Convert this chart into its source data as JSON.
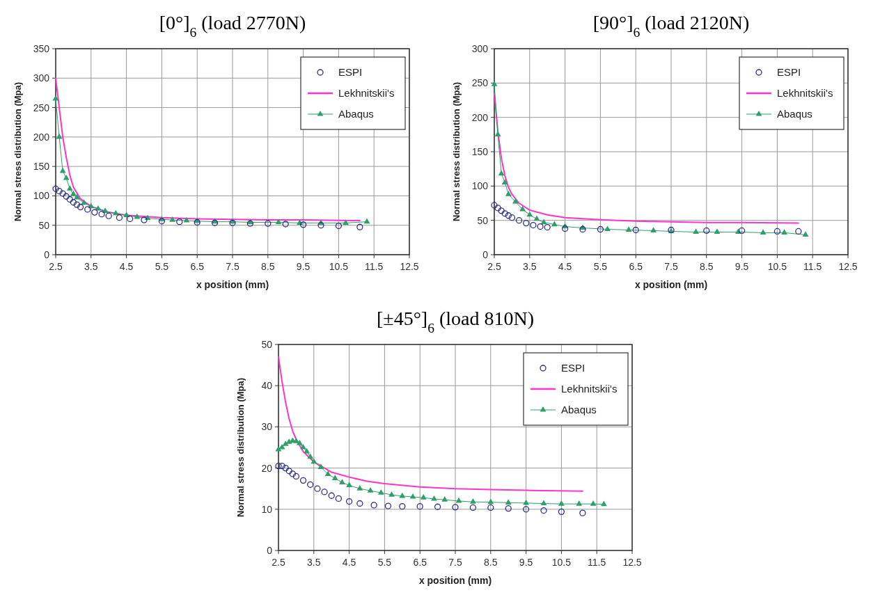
{
  "chart_data": [
    {
      "type": "line",
      "title": "[0°]$_{6}$ (load 2770N)",
      "xlabel": "x position (mm)",
      "ylabel": "Normal stress distribution (Mpa)",
      "xlim": [
        2.5,
        12.5
      ],
      "xticks": [
        2.5,
        3.5,
        4.5,
        5.5,
        6.5,
        7.5,
        8.5,
        9.5,
        10.5,
        11.5,
        12.5
      ],
      "ylim": [
        0,
        350
      ],
      "yticks": [
        0,
        50,
        100,
        150,
        200,
        250,
        300,
        350
      ],
      "grid": true,
      "legend": "top right",
      "series": [
        {
          "name": "ESPI",
          "type": "scatter",
          "marker": "circle",
          "color": "#2e2e8c",
          "x": [
            2.5,
            2.6,
            2.7,
            2.8,
            2.9,
            3.0,
            3.1,
            3.2,
            3.4,
            3.6,
            3.8,
            4.0,
            4.3,
            4.6,
            5.0,
            5.5,
            6.0,
            6.5,
            7.0,
            7.5,
            8.0,
            8.5,
            9.0,
            9.5,
            10.0,
            10.5,
            11.1
          ],
          "values": [
            112,
            108,
            104,
            99,
            94,
            89,
            85,
            81,
            77,
            72,
            69,
            66,
            63,
            61,
            59,
            57,
            56,
            55,
            54,
            54,
            53,
            53,
            52,
            51,
            50,
            49,
            47
          ]
        },
        {
          "name": "Lekhnitskii's",
          "marker": "none",
          "color": "#ff33cc",
          "x": [
            2.5,
            2.6,
            2.7,
            2.8,
            2.9,
            3.0,
            3.2,
            3.5,
            4.0,
            4.5,
            5.5,
            6.5,
            7.5,
            8.5,
            9.5,
            11.1
          ],
          "values": [
            300,
            250,
            200,
            165,
            135,
            115,
            95,
            82,
            72,
            67,
            63,
            61,
            60,
            59,
            59,
            58
          ]
        },
        {
          "name": "Abaqus",
          "marker": "triangle",
          "color": "#2e9e6a",
          "x": [
            2.5,
            2.6,
            2.7,
            2.8,
            2.9,
            3.0,
            3.1,
            3.3,
            3.5,
            3.7,
            3.9,
            4.2,
            4.5,
            4.8,
            5.1,
            5.5,
            5.8,
            6.2,
            6.5,
            7.0,
            7.5,
            8.0,
            8.8,
            9.4,
            10.0,
            10.7,
            11.3
          ],
          "values": [
            265,
            200,
            142,
            130,
            112,
            103,
            97,
            88,
            82,
            78,
            74,
            70,
            67,
            64,
            62,
            60,
            59,
            58,
            57,
            56,
            56,
            55,
            55,
            54,
            54,
            54,
            56
          ]
        }
      ]
    },
    {
      "type": "line",
      "title": "[90°]$_{6}$ (load 2120N)",
      "xlabel": "x position (mm)",
      "ylabel": "Normal stress distribution (Mpa)",
      "xlim": [
        2.5,
        12.5
      ],
      "xticks": [
        2.5,
        3.5,
        4.5,
        5.5,
        6.5,
        7.5,
        8.5,
        9.5,
        10.5,
        11.5,
        12.5
      ],
      "ylim": [
        0,
        300
      ],
      "yticks": [
        0,
        50,
        100,
        150,
        200,
        250,
        300
      ],
      "grid": true,
      "legend": "top right",
      "series": [
        {
          "name": "ESPI",
          "type": "scatter",
          "marker": "circle",
          "color": "#2e2e8c",
          "x": [
            2.5,
            2.6,
            2.7,
            2.8,
            2.9,
            3.0,
            3.2,
            3.4,
            3.6,
            3.8,
            4.0,
            4.5,
            5.0,
            5.5,
            6.5,
            7.5,
            8.5,
            9.5,
            10.5,
            11.1
          ],
          "values": [
            72,
            68,
            64,
            60,
            57,
            54,
            50,
            46,
            43,
            41,
            40,
            38,
            37,
            37,
            36,
            36,
            35,
            35,
            34,
            34
          ]
        },
        {
          "name": "Lekhnitskii's",
          "marker": "none",
          "color": "#ff33cc",
          "x": [
            2.5,
            2.6,
            2.7,
            2.8,
            2.9,
            3.0,
            3.2,
            3.5,
            4.0,
            4.5,
            5.5,
            6.5,
            7.5,
            8.5,
            9.5,
            11.1
          ],
          "values": [
            235,
            180,
            140,
            115,
            98,
            88,
            75,
            65,
            58,
            54,
            51,
            49,
            48,
            47,
            47,
            46
          ]
        },
        {
          "name": "Abaqus",
          "marker": "triangle",
          "color": "#2e9e6a",
          "x": [
            2.5,
            2.6,
            2.7,
            2.8,
            2.9,
            3.1,
            3.3,
            3.5,
            3.7,
            3.9,
            4.2,
            4.5,
            5.0,
            5.7,
            6.3,
            7.0,
            7.5,
            8.2,
            8.8,
            9.4,
            10.1,
            10.7,
            11.3
          ],
          "values": [
            248,
            175,
            118,
            105,
            88,
            77,
            66,
            58,
            52,
            47,
            44,
            41,
            39,
            37,
            36,
            35,
            34,
            33,
            33,
            33,
            32,
            32,
            29
          ]
        }
      ]
    },
    {
      "type": "line",
      "title": "[±45°]$_{6}$ (load 810N)",
      "xlabel": "x position (mm)",
      "ylabel": "Normal stress distribution (Mpa)",
      "xlim": [
        2.5,
        12.5
      ],
      "xticks": [
        2.5,
        3.5,
        4.5,
        5.5,
        6.5,
        7.5,
        8.5,
        9.5,
        10.5,
        11.5,
        12.5
      ],
      "ylim": [
        0,
        50
      ],
      "yticks": [
        0,
        10,
        20,
        30,
        40,
        50
      ],
      "grid": true,
      "legend": "top right",
      "series": [
        {
          "name": "ESPI",
          "type": "scatter",
          "marker": "circle",
          "color": "#2e2e8c",
          "x": [
            2.5,
            2.6,
            2.7,
            2.8,
            2.9,
            3.0,
            3.2,
            3.4,
            3.6,
            3.8,
            4.0,
            4.2,
            4.5,
            4.8,
            5.2,
            5.6,
            6.0,
            6.5,
            7.0,
            7.5,
            8.0,
            8.5,
            9.0,
            9.5,
            10.0,
            10.5,
            11.1
          ],
          "values": [
            20.5,
            20.5,
            20,
            19.3,
            18.6,
            18,
            17,
            16,
            15,
            14.2,
            13.3,
            12.6,
            11.9,
            11.4,
            11,
            10.8,
            10.7,
            10.7,
            10.6,
            10.5,
            10.4,
            10.4,
            10.2,
            10,
            9.7,
            9.4,
            9.1
          ]
        },
        {
          "name": "Lekhnitskii's",
          "marker": "none",
          "color": "#ff33cc",
          "x": [
            2.5,
            2.6,
            2.7,
            2.8,
            2.9,
            3.0,
            3.2,
            3.5,
            4.0,
            4.5,
            5.0,
            5.5,
            6.5,
            7.5,
            8.5,
            9.5,
            11.1
          ],
          "values": [
            47,
            41,
            36,
            32,
            29,
            27,
            24,
            21.5,
            19,
            17.8,
            16.8,
            16.2,
            15.4,
            15,
            14.8,
            14.6,
            14.4
          ]
        },
        {
          "name": "Abaqus",
          "marker": "triangle",
          "color": "#2e9e6a",
          "x": [
            2.5,
            2.6,
            2.7,
            2.8,
            2.9,
            3.0,
            3.1,
            3.2,
            3.3,
            3.4,
            3.5,
            3.7,
            3.9,
            4.1,
            4.3,
            4.5,
            4.8,
            5.1,
            5.4,
            5.7,
            6.0,
            6.3,
            6.6,
            6.9,
            7.2,
            7.6,
            8.0,
            8.5,
            9.0,
            9.5,
            10.0,
            10.5,
            11.0,
            11.4,
            11.7
          ],
          "values": [
            24.5,
            25,
            25.8,
            26.3,
            26.6,
            26.5,
            26,
            25,
            24,
            22.7,
            21.5,
            20.2,
            18.5,
            17.5,
            16.5,
            15.8,
            15,
            14.5,
            14,
            13.5,
            13.2,
            13,
            12.8,
            12.5,
            12.3,
            12,
            11.8,
            11.7,
            11.6,
            11.5,
            11.4,
            11.3,
            11.3,
            11.3,
            11.2
          ]
        }
      ]
    }
  ]
}
